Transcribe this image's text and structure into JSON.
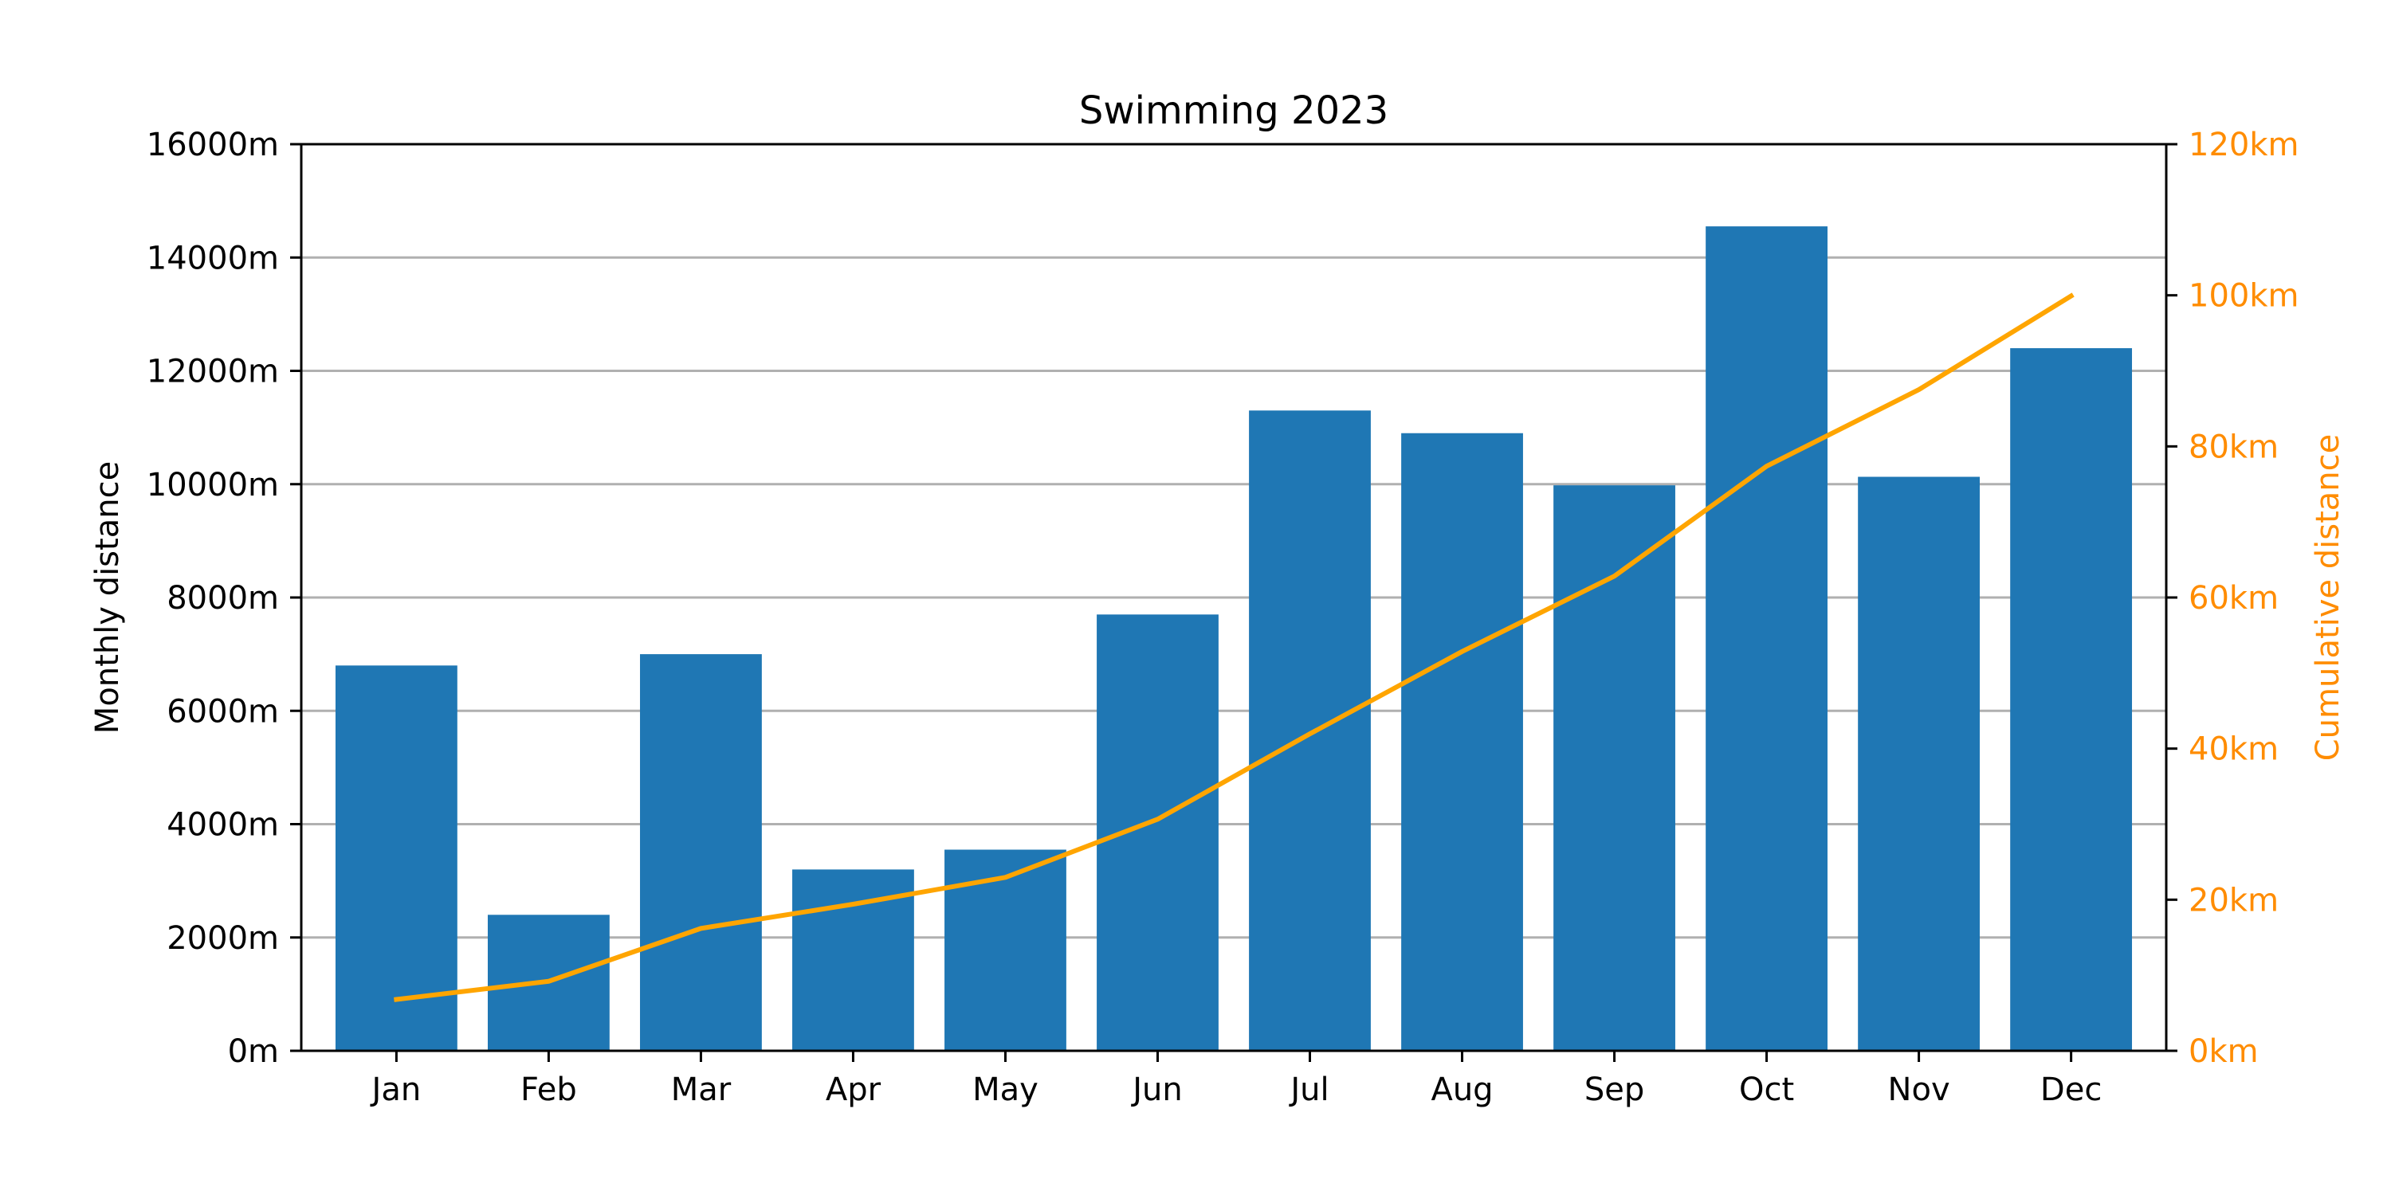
{
  "chart_data": {
    "type": "bar",
    "title": "Swimming 2023",
    "categories": [
      "Jan",
      "Feb",
      "Mar",
      "Apr",
      "May",
      "Jun",
      "Jul",
      "Aug",
      "Sep",
      "Oct",
      "Nov",
      "Dec"
    ],
    "series": [
      {
        "type": "bar",
        "axis": "left",
        "color": "#1f77b4",
        "unit": "m",
        "values": [
          6800,
          2400,
          7000,
          3200,
          3550,
          7700,
          11300,
          10900,
          9980,
          14550,
          10130,
          12400
        ]
      },
      {
        "type": "line",
        "axis": "right",
        "color": "#ffa500",
        "unit": "km",
        "values": [
          6.8,
          9.2,
          16.2,
          19.4,
          22.95,
          30.65,
          41.95,
          52.85,
          62.83,
          77.38,
          87.51,
          99.91
        ]
      }
    ],
    "left_axis": {
      "label": "Monthly distance",
      "ylim": [
        0,
        16000
      ],
      "ticks": [
        0,
        2000,
        4000,
        6000,
        8000,
        10000,
        12000,
        14000,
        16000
      ],
      "tick_labels": [
        "0m",
        "2000m",
        "4000m",
        "6000m",
        "8000m",
        "10000m",
        "12000m",
        "14000m",
        "16000m"
      ]
    },
    "right_axis": {
      "label": "Cumulative distance",
      "ylim": [
        0,
        120
      ],
      "ticks": [
        0,
        20,
        40,
        60,
        80,
        100,
        120
      ],
      "tick_labels": [
        "0km",
        "20km",
        "40km",
        "60km",
        "80km",
        "100km",
        "120km"
      ],
      "color": "#ff8c00"
    },
    "grid": "horizontal",
    "legend": "none"
  }
}
